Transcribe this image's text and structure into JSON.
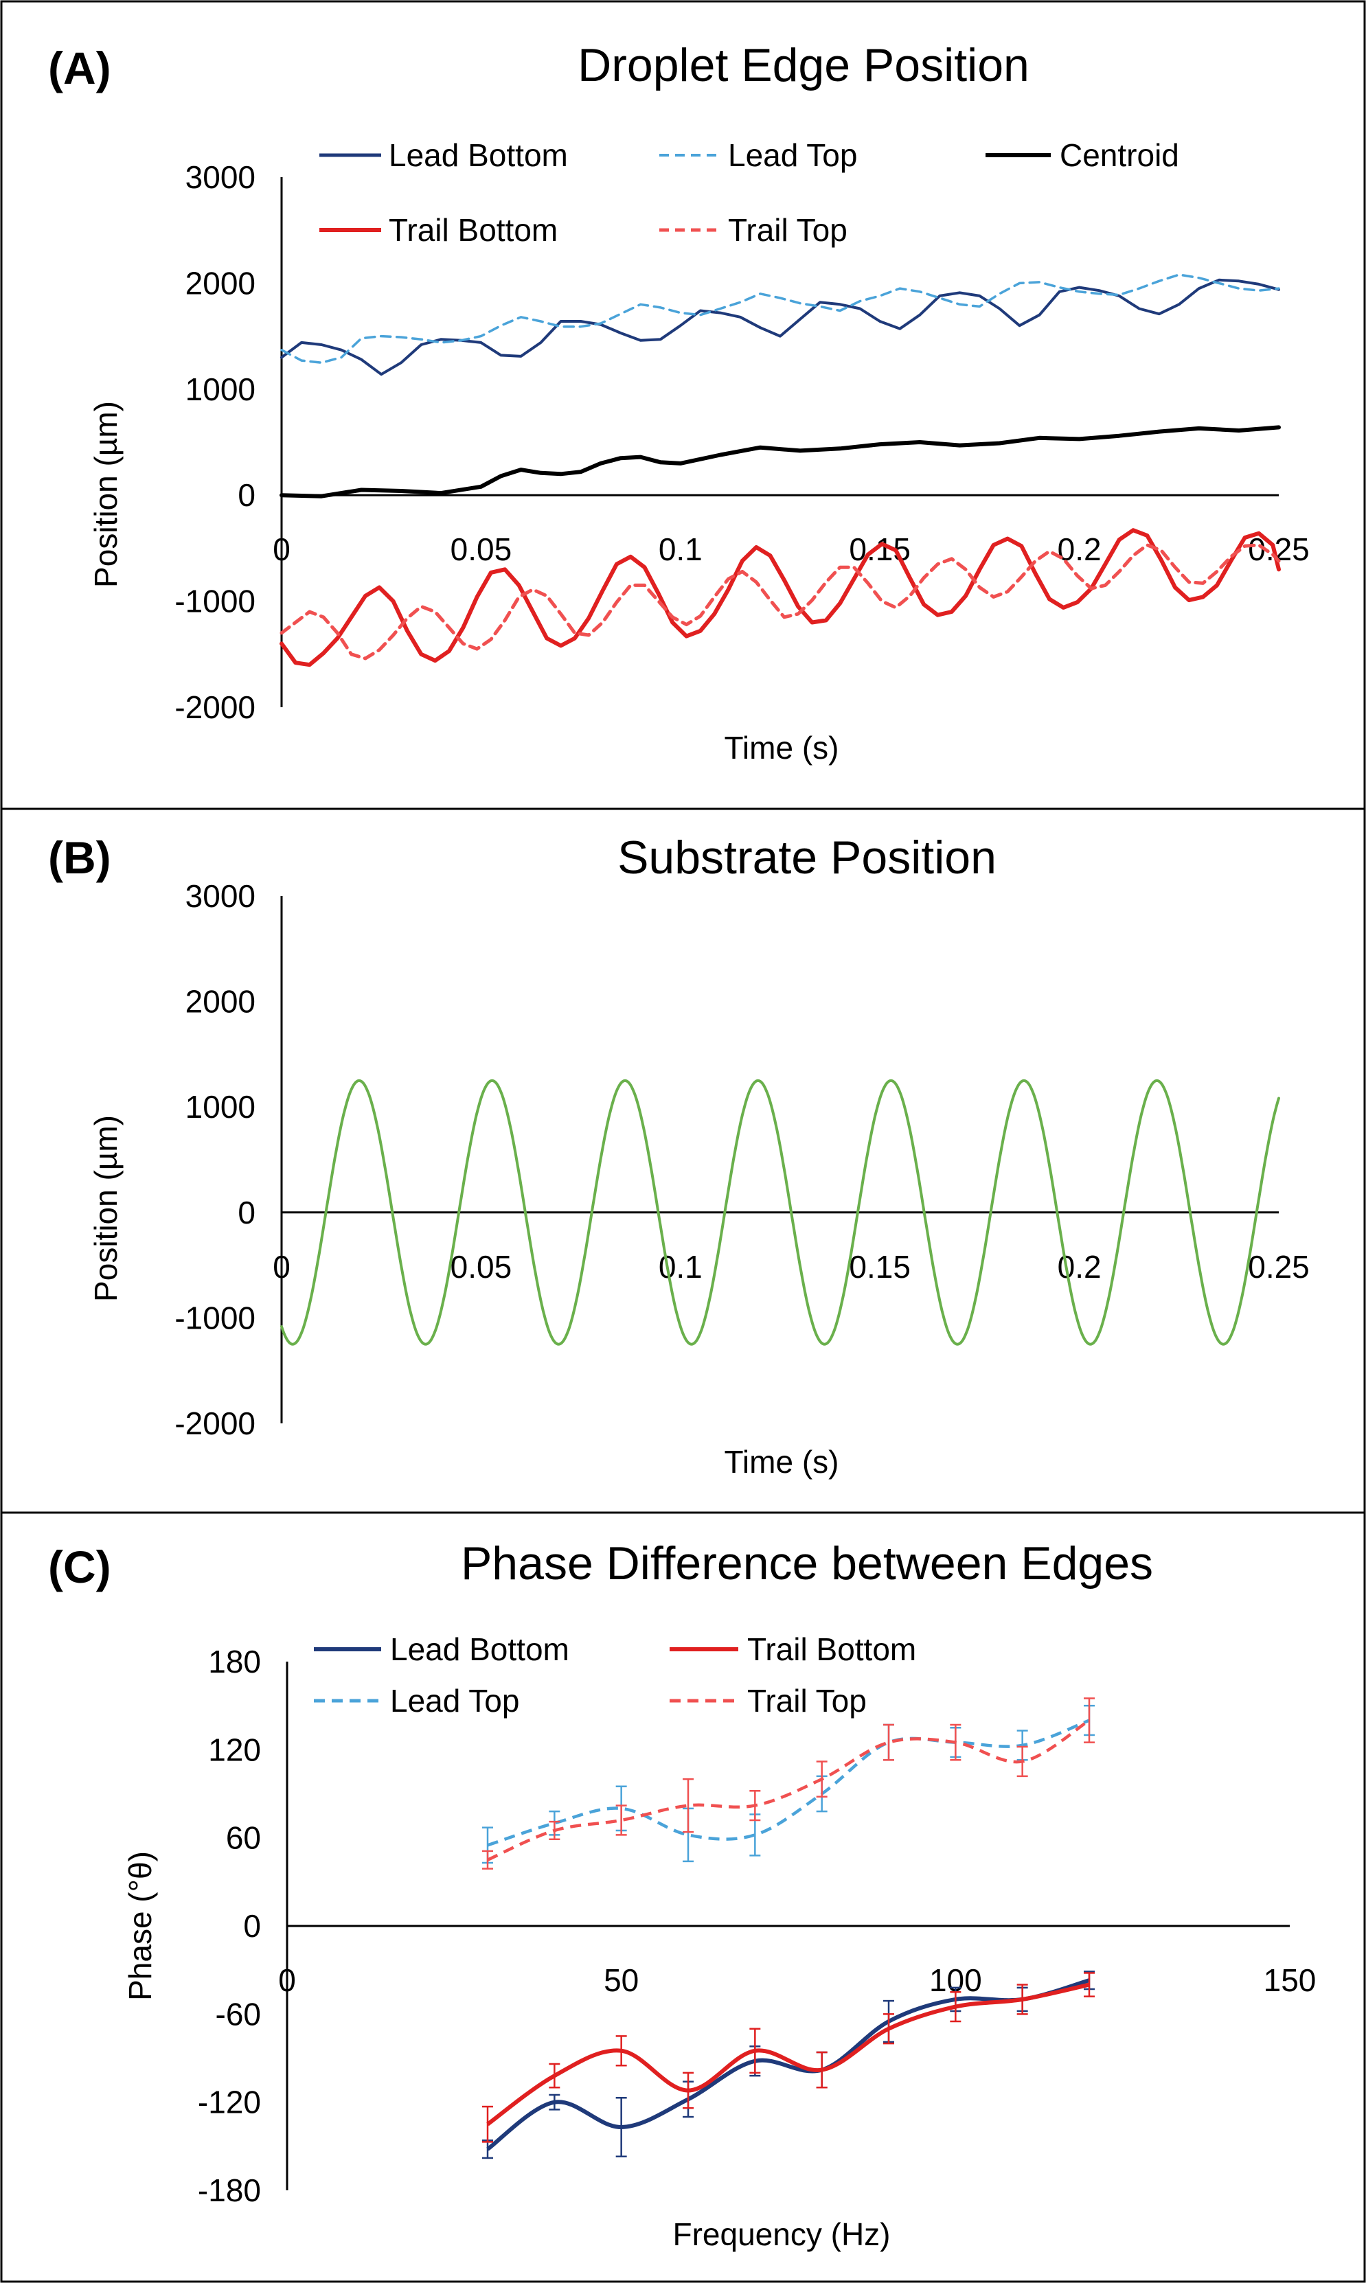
{
  "colors": {
    "lead_bottom": "#1f3a7a",
    "lead_top": "#4aa3d9",
    "centroid": "#000000",
    "trail_bottom": "#e02020",
    "trail_top": "#f05050",
    "substrate": "#6ab04c"
  },
  "chart_data": [
    {
      "panel": "(A)",
      "type": "line",
      "title": "Droplet Edge Position",
      "xlabel": "Time (s)",
      "ylabel": "Position (µm)",
      "xlim": [
        0,
        0.25
      ],
      "ylim": [
        -2000,
        3000
      ],
      "xticks": [
        "0",
        "0.05",
        "0.1",
        "0.15",
        "0.2",
        "0.25"
      ],
      "yticks": [
        "3000",
        "2000",
        "1000",
        "0",
        "-1000",
        "-2000"
      ],
      "grid": false,
      "legend_position": "top",
      "series": [
        {
          "name": "Lead Bottom",
          "style": "solid",
          "x": [
            0,
            0.005,
            0.01,
            0.015,
            0.02,
            0.025,
            0.03,
            0.035,
            0.04,
            0.045,
            0.05,
            0.055,
            0.06,
            0.065,
            0.07,
            0.075,
            0.08,
            0.085,
            0.09,
            0.095,
            0.1,
            0.105,
            0.11,
            0.115,
            0.12,
            0.125,
            0.13,
            0.135,
            0.14,
            0.145,
            0.15,
            0.155,
            0.16,
            0.165,
            0.17,
            0.175,
            0.18,
            0.185,
            0.19,
            0.195,
            0.2,
            0.205,
            0.21,
            0.215,
            0.22,
            0.225,
            0.23,
            0.235,
            0.24,
            0.245,
            0.25
          ],
          "values": [
            1300,
            1440,
            1420,
            1370,
            1280,
            1140,
            1250,
            1420,
            1470,
            1460,
            1440,
            1320,
            1310,
            1440,
            1640,
            1640,
            1610,
            1530,
            1460,
            1470,
            1600,
            1740,
            1720,
            1680,
            1580,
            1500,
            1660,
            1820,
            1800,
            1760,
            1640,
            1570,
            1700,
            1880,
            1910,
            1880,
            1760,
            1600,
            1700,
            1920,
            1960,
            1930,
            1880,
            1760,
            1710,
            1800,
            1950,
            2030,
            2020,
            1990,
            1940
          ]
        },
        {
          "name": "Lead Top",
          "style": "dashed",
          "x": [
            0,
            0.005,
            0.01,
            0.015,
            0.02,
            0.025,
            0.03,
            0.035,
            0.04,
            0.045,
            0.05,
            0.055,
            0.06,
            0.065,
            0.07,
            0.075,
            0.08,
            0.085,
            0.09,
            0.095,
            0.1,
            0.105,
            0.11,
            0.115,
            0.12,
            0.125,
            0.13,
            0.135,
            0.14,
            0.145,
            0.15,
            0.155,
            0.16,
            0.165,
            0.17,
            0.175,
            0.18,
            0.185,
            0.19,
            0.195,
            0.2,
            0.205,
            0.21,
            0.215,
            0.22,
            0.225,
            0.23,
            0.235,
            0.24,
            0.245,
            0.25
          ],
          "values": [
            1370,
            1270,
            1250,
            1300,
            1480,
            1500,
            1490,
            1470,
            1440,
            1460,
            1500,
            1600,
            1680,
            1640,
            1590,
            1590,
            1620,
            1710,
            1800,
            1770,
            1720,
            1700,
            1760,
            1820,
            1900,
            1860,
            1810,
            1780,
            1740,
            1830,
            1880,
            1950,
            1920,
            1860,
            1800,
            1780,
            1900,
            2000,
            2010,
            1960,
            1920,
            1900,
            1890,
            1950,
            2020,
            2080,
            2050,
            2000,
            1950,
            1930,
            1950
          ]
        },
        {
          "name": "Centroid",
          "style": "solid",
          "x": [
            0,
            0.01,
            0.02,
            0.03,
            0.04,
            0.05,
            0.055,
            0.06,
            0.065,
            0.07,
            0.075,
            0.08,
            0.085,
            0.09,
            0.095,
            0.1,
            0.11,
            0.12,
            0.13,
            0.14,
            0.15,
            0.16,
            0.17,
            0.18,
            0.19,
            0.2,
            0.21,
            0.22,
            0.23,
            0.24,
            0.25
          ],
          "values": [
            0,
            -10,
            50,
            40,
            20,
            80,
            180,
            240,
            210,
            200,
            220,
            300,
            350,
            360,
            310,
            300,
            380,
            450,
            420,
            440,
            480,
            500,
            470,
            490,
            540,
            530,
            560,
            600,
            630,
            610,
            640
          ]
        },
        {
          "name": "Trail Bottom",
          "style": "solid",
          "x": [
            0,
            0.0035,
            0.007,
            0.0105,
            0.014,
            0.0175,
            0.021,
            0.0245,
            0.028,
            0.0315,
            0.035,
            0.0385,
            0.042,
            0.0455,
            0.049,
            0.0525,
            0.056,
            0.0595,
            0.063,
            0.0665,
            0.07,
            0.0735,
            0.077,
            0.0805,
            0.084,
            0.0875,
            0.091,
            0.0945,
            0.098,
            0.1015,
            0.105,
            0.1085,
            0.112,
            0.1155,
            0.119,
            0.1225,
            0.126,
            0.1295,
            0.133,
            0.1365,
            0.14,
            0.1435,
            0.147,
            0.1505,
            0.154,
            0.1575,
            0.161,
            0.1645,
            0.168,
            0.1715,
            0.175,
            0.1785,
            0.182,
            0.1855,
            0.189,
            0.1925,
            0.196,
            0.1995,
            0.203,
            0.2065,
            0.21,
            0.2135,
            0.217,
            0.2205,
            0.224,
            0.2275,
            0.231,
            0.2345,
            0.238,
            0.2415,
            0.245,
            0.2485,
            0.25
          ],
          "values": [
            -1400,
            -1580,
            -1600,
            -1490,
            -1350,
            -1150,
            -950,
            -870,
            -1000,
            -1280,
            -1500,
            -1560,
            -1470,
            -1250,
            -960,
            -730,
            -700,
            -850,
            -1100,
            -1350,
            -1420,
            -1350,
            -1160,
            -900,
            -650,
            -580,
            -680,
            -930,
            -1200,
            -1330,
            -1280,
            -1120,
            -890,
            -620,
            -490,
            -570,
            -800,
            -1050,
            -1200,
            -1180,
            -1020,
            -790,
            -560,
            -460,
            -520,
            -780,
            -1030,
            -1130,
            -1100,
            -950,
            -700,
            -470,
            -410,
            -480,
            -740,
            -980,
            -1060,
            -1010,
            -880,
            -650,
            -420,
            -330,
            -380,
            -610,
            -870,
            -990,
            -960,
            -850,
            -620,
            -400,
            -360,
            -470,
            -700
          ]
        },
        {
          "name": "Trail Top",
          "style": "dashed",
          "x": [
            0,
            0.0035,
            0.007,
            0.0105,
            0.014,
            0.0175,
            0.021,
            0.0245,
            0.028,
            0.0315,
            0.035,
            0.0385,
            0.042,
            0.0455,
            0.049,
            0.0525,
            0.056,
            0.0595,
            0.063,
            0.0665,
            0.07,
            0.0735,
            0.077,
            0.0805,
            0.084,
            0.0875,
            0.091,
            0.0945,
            0.098,
            0.1015,
            0.105,
            0.1085,
            0.112,
            0.1155,
            0.119,
            0.1225,
            0.126,
            0.1295,
            0.133,
            0.1365,
            0.14,
            0.1435,
            0.147,
            0.1505,
            0.154,
            0.1575,
            0.161,
            0.1645,
            0.168,
            0.1715,
            0.175,
            0.1785,
            0.182,
            0.1855,
            0.189,
            0.1925,
            0.196,
            0.1995,
            0.203,
            0.2065,
            0.21,
            0.2135,
            0.217,
            0.2205,
            0.224,
            0.2275,
            0.231,
            0.2345,
            0.238,
            0.2415,
            0.245,
            0.2485,
            0.25
          ],
          "values": [
            -1300,
            -1200,
            -1100,
            -1150,
            -1300,
            -1500,
            -1540,
            -1460,
            -1320,
            -1160,
            -1050,
            -1100,
            -1250,
            -1400,
            -1450,
            -1360,
            -1180,
            -960,
            -890,
            -950,
            -1120,
            -1300,
            -1320,
            -1200,
            -1010,
            -850,
            -850,
            -1000,
            -1150,
            -1220,
            -1140,
            -960,
            -790,
            -720,
            -820,
            -990,
            -1150,
            -1120,
            -990,
            -820,
            -680,
            -680,
            -830,
            -1000,
            -1060,
            -950,
            -780,
            -650,
            -600,
            -700,
            -870,
            -960,
            -910,
            -770,
            -620,
            -530,
            -600,
            -760,
            -880,
            -850,
            -720,
            -570,
            -470,
            -520,
            -680,
            -820,
            -830,
            -720,
            -580,
            -480,
            -470,
            -560,
            -620
          ]
        }
      ]
    },
    {
      "panel": "(B)",
      "type": "line",
      "title": "Substrate Position",
      "xlabel": "Time (s)",
      "ylabel": "Position (µm)",
      "xlim": [
        0,
        0.25
      ],
      "ylim": [
        -2000,
        3000
      ],
      "xticks": [
        "0",
        "0.05",
        "0.1",
        "0.15",
        "0.2",
        "0.25"
      ],
      "yticks": [
        "3000",
        "2000",
        "1000",
        "0",
        "-1000",
        "-2000"
      ],
      "grid": false,
      "series": [
        {
          "name": "Substrate",
          "style": "solid",
          "amplitude": 1250,
          "frequency_hz": 30,
          "phase_deg": -120,
          "x_range": [
            0,
            0.25
          ]
        }
      ]
    },
    {
      "panel": "(C)",
      "type": "line",
      "title": "Phase Difference between Edges",
      "xlabel": "Frequency (Hz)",
      "ylabel": "Phase (°θ)",
      "xlim": [
        0,
        150
      ],
      "ylim": [
        -180,
        180
      ],
      "xticks": [
        "0",
        "50",
        "100",
        "150"
      ],
      "yticks": [
        "180",
        "120",
        "60",
        "0",
        "-60",
        "-120",
        "-180"
      ],
      "grid": false,
      "legend_position": "top-left",
      "series": [
        {
          "name": "Lead Bottom",
          "style": "solid",
          "x": [
            30,
            40,
            50,
            60,
            70,
            80,
            90,
            100,
            110,
            120
          ],
          "values": [
            -152,
            -120,
            -137,
            -118,
            -92,
            -98,
            -65,
            -50,
            -50,
            -37
          ],
          "errors": [
            6,
            5,
            20,
            12,
            10,
            12,
            14,
            8,
            8,
            6
          ]
        },
        {
          "name": "Trail Bottom",
          "style": "solid",
          "x": [
            30,
            40,
            50,
            60,
            70,
            80,
            90,
            100,
            110,
            120
          ],
          "values": [
            -135,
            -102,
            -85,
            -112,
            -85,
            -98,
            -70,
            -55,
            -50,
            -40
          ],
          "errors": [
            12,
            8,
            10,
            12,
            15,
            12,
            10,
            10,
            10,
            8
          ]
        },
        {
          "name": "Lead Top",
          "style": "dashed",
          "x": [
            30,
            40,
            50,
            60,
            70,
            80,
            90,
            100,
            110,
            120
          ],
          "values": [
            55,
            70,
            80,
            62,
            62,
            90,
            125,
            125,
            123,
            140
          ],
          "errors": [
            12,
            8,
            15,
            18,
            14,
            12,
            12,
            10,
            10,
            10
          ]
        },
        {
          "name": "Trail Top",
          "style": "dashed",
          "x": [
            30,
            40,
            50,
            60,
            70,
            80,
            90,
            100,
            110,
            120
          ],
          "values": [
            45,
            65,
            72,
            82,
            82,
            100,
            125,
            125,
            112,
            140
          ],
          "errors": [
            6,
            6,
            10,
            18,
            10,
            12,
            12,
            12,
            10,
            15
          ]
        }
      ]
    }
  ]
}
